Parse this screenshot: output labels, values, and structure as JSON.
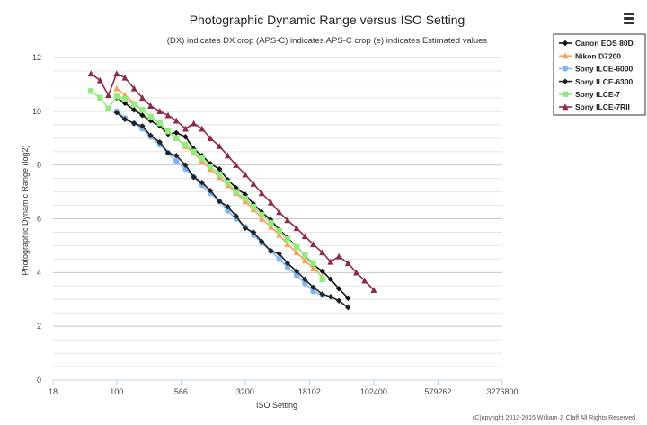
{
  "chart_data": {
    "type": "line",
    "title": "Photographic Dynamic Range versus ISO Setting",
    "subtitle": "(DX) indicates DX crop (APS-C) indicates APS-C crop (e) indicates Estimated values",
    "xlabel": "ISO Setting",
    "ylabel": "Photographic Dynamic Range (log2)",
    "x_scale": "log",
    "x_ticks": [
      18,
      100,
      566,
      3200,
      18102,
      102400,
      579262,
      3276800
    ],
    "x_tick_labels": [
      "18",
      "100",
      "566",
      "3200",
      "18102",
      "102400",
      "579262",
      "3276800"
    ],
    "xlim": [
      18,
      3276800
    ],
    "ylim": [
      0,
      12
    ],
    "y_ticks": [
      0,
      2,
      4,
      6,
      8,
      10,
      12
    ],
    "grid": true,
    "legend_position": "top-right",
    "copyright": "(C)opyright 2012-2015 William J. Claff All Rights Reserved.",
    "series": [
      {
        "name": "Canon EOS 80D",
        "color": "#111111",
        "marker": "diamond",
        "x": [
          100,
          125,
          160,
          200,
          250,
          320,
          400,
          500,
          640,
          800,
          1000,
          1250,
          1600,
          2000,
          2500,
          3200,
          4000,
          5000,
          6400,
          8000,
          10000,
          12800,
          16000,
          20000,
          25600,
          32000,
          40000,
          51200
        ],
        "y": [
          10.5,
          10.3,
          10.05,
          9.85,
          9.65,
          9.45,
          9.15,
          9.2,
          9.05,
          8.6,
          8.35,
          8.05,
          7.85,
          7.45,
          7.15,
          6.9,
          6.55,
          6.25,
          5.95,
          5.6,
          5.3,
          4.95,
          4.65,
          4.3,
          4.05,
          3.75,
          3.4,
          3.05
        ]
      },
      {
        "name": "Nikon D7200",
        "color": "#f7a35c",
        "marker": "triangle",
        "x": [
          100,
          125,
          160,
          200,
          250,
          320,
          400,
          500,
          640,
          800,
          1000,
          1250,
          1600,
          2000,
          2500,
          3200,
          4000,
          5000,
          6400,
          8000,
          10000,
          12800,
          16000,
          20000,
          25600
        ],
        "y": [
          10.85,
          10.6,
          10.3,
          10.05,
          9.8,
          9.55,
          9.25,
          9.0,
          8.7,
          8.45,
          8.15,
          7.85,
          7.55,
          7.25,
          6.95,
          6.65,
          6.35,
          6.0,
          5.7,
          5.4,
          5.05,
          4.75,
          4.45,
          4.15,
          3.85
        ]
      },
      {
        "name": "Sony ILCE-6000",
        "color": "#7cb5ec",
        "marker": "circle",
        "x": [
          100,
          125,
          160,
          200,
          250,
          320,
          400,
          500,
          640,
          800,
          1000,
          1250,
          1600,
          2000,
          2500,
          3200,
          4000,
          5000,
          6400,
          8000,
          10000,
          12800,
          16000,
          20000,
          25600
        ],
        "y": [
          10.0,
          9.75,
          9.55,
          9.35,
          9.05,
          8.75,
          8.45,
          8.15,
          7.85,
          7.55,
          7.25,
          6.95,
          6.65,
          6.3,
          6.0,
          5.7,
          5.4,
          5.1,
          4.8,
          4.5,
          4.2,
          3.9,
          3.6,
          3.3,
          3.15
        ]
      },
      {
        "name": "Sony ILCE-6300",
        "color": "#222222",
        "marker": "diamond",
        "x": [
          100,
          125,
          160,
          200,
          250,
          320,
          400,
          500,
          640,
          800,
          1000,
          1250,
          1600,
          2000,
          2500,
          3200,
          4000,
          5000,
          6400,
          8000,
          10000,
          12800,
          16000,
          20000,
          25600,
          32000,
          40000,
          51200
        ],
        "y": [
          9.95,
          9.7,
          9.55,
          9.45,
          9.1,
          8.85,
          8.45,
          8.35,
          8.0,
          7.55,
          7.35,
          7.05,
          6.65,
          6.45,
          6.1,
          5.65,
          5.5,
          5.15,
          4.8,
          4.7,
          4.35,
          4.05,
          3.75,
          3.45,
          3.2,
          3.1,
          2.95,
          2.7
        ]
      },
      {
        "name": "Sony ILCE-7",
        "color": "#90ed7d",
        "marker": "square",
        "x": [
          50,
          64,
          80,
          100,
          125,
          160,
          200,
          250,
          320,
          400,
          500,
          640,
          800,
          1000,
          1250,
          1600,
          2000,
          2500,
          3200,
          4000,
          5000,
          6400,
          8000,
          10000,
          12800,
          16000,
          20000,
          25600
        ],
        "y": [
          10.75,
          10.5,
          10.1,
          10.55,
          10.45,
          10.25,
          10.05,
          9.8,
          9.55,
          9.25,
          9.0,
          8.75,
          8.5,
          8.25,
          7.95,
          7.65,
          7.35,
          7.0,
          6.75,
          6.45,
          6.15,
          5.85,
          5.55,
          5.25,
          4.95,
          4.65,
          4.35,
          3.75
        ]
      },
      {
        "name": "Sony ILCE-7RII",
        "color": "#8d2a48",
        "marker": "triangle",
        "x": [
          50,
          64,
          80,
          100,
          125,
          160,
          200,
          250,
          320,
          400,
          500,
          640,
          800,
          1000,
          1250,
          1600,
          2000,
          2500,
          3200,
          4000,
          5000,
          6400,
          8000,
          10000,
          12800,
          16000,
          20000,
          25600,
          32000,
          40000,
          51200,
          64000,
          80000,
          102400
        ],
        "y": [
          11.4,
          11.15,
          10.6,
          11.4,
          11.25,
          10.85,
          10.5,
          10.2,
          10.0,
          9.85,
          9.65,
          9.35,
          9.55,
          9.35,
          9.0,
          8.7,
          8.35,
          8.0,
          7.65,
          7.3,
          6.95,
          6.6,
          6.25,
          5.95,
          5.65,
          5.35,
          5.05,
          4.75,
          4.4,
          4.6,
          4.35,
          4.0,
          3.7,
          3.35
        ]
      }
    ]
  }
}
